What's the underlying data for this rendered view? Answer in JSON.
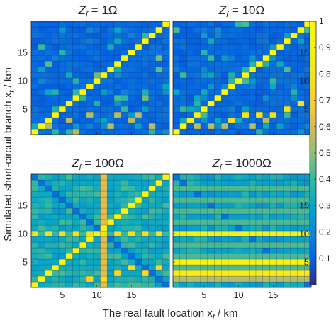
{
  "chart_data": {
    "type": "heatmap",
    "colormap": "parula",
    "xlabel": "The real fault location x",
    "xlabel_sub": "f",
    "xlabel_unit": " / km",
    "ylabel": "Simulated short-circuit branch x",
    "ylabel_sub": "f",
    "ylabel_unit": " / km",
    "grid_size": 20,
    "x_ticks": [
      5,
      10,
      15
    ],
    "y_ticks": [
      5,
      10,
      15
    ],
    "colorbar": {
      "range": [
        0,
        1
      ],
      "ticks": [
        0.1,
        0.2,
        0.3,
        0.4,
        0.5,
        0.6,
        0.7,
        0.8,
        0.9,
        1
      ]
    },
    "panels": [
      {
        "title_prefix": "Z",
        "title_sub": "f",
        "title_value": " = 1Ω",
        "background": 0.12,
        "diagonal": 0.97,
        "features": [
          {
            "kind": "noise",
            "amp": 0.35,
            "seed": 11,
            "density": 0.18
          },
          {
            "kind": "cells",
            "value": 0.55,
            "points": [
              [
                6,
                3
              ],
              [
                9,
                4
              ],
              [
                13,
                4
              ],
              [
                16,
                4
              ],
              [
                3,
                2
              ],
              [
                12,
                2
              ],
              [
                7,
                1
              ],
              [
                15,
                3
              ],
              [
                18,
                2
              ]
            ]
          }
        ]
      },
      {
        "title_prefix": "Z",
        "title_sub": "f",
        "title_value": " = 10Ω",
        "background": 0.12,
        "diagonal": 0.97,
        "features": [
          {
            "kind": "noise",
            "amp": 0.3,
            "seed": 23,
            "density": 0.16
          },
          {
            "kind": "cells",
            "value": 0.8,
            "points": [
              [
                11,
                4
              ],
              [
                13,
                4
              ],
              [
                15,
                4
              ],
              [
                17,
                5
              ],
              [
                19,
                6
              ],
              [
                9,
                3
              ]
            ]
          },
          {
            "kind": "cells",
            "value": 0.55,
            "points": [
              [
                4,
                2
              ],
              [
                6,
                2
              ],
              [
                8,
                2
              ],
              [
                12,
                2
              ],
              [
                14,
                3
              ]
            ]
          }
        ]
      },
      {
        "title_prefix": "Z",
        "title_sub": "f",
        "title_value": " = 100Ω",
        "background": 0.3,
        "diagonal": 0.95,
        "features": [
          {
            "kind": "noise",
            "amp": 0.12,
            "seed": 37,
            "density": 0.5
          },
          {
            "kind": "antidiagonal",
            "value": 0.14
          },
          {
            "kind": "row",
            "index": 10,
            "value": 0.78,
            "alt": 0.4
          },
          {
            "kind": "column",
            "index": 11,
            "value": 0.62
          },
          {
            "kind": "cells",
            "value": 0.75,
            "points": [
              [
                13,
                3
              ],
              [
                15,
                4
              ],
              [
                17,
                3
              ],
              [
                19,
                4
              ],
              [
                9,
                2
              ],
              [
                11,
                2
              ]
            ]
          }
        ]
      },
      {
        "title_prefix": "Z",
        "title_sub": "f",
        "title_value": " = 1000Ω",
        "background": 0.27,
        "diagonal": null,
        "features": [
          {
            "kind": "noise",
            "amp": 0.1,
            "seed": 41,
            "density": 0.5
          },
          {
            "kind": "antidiagonal",
            "value": 0.14
          },
          {
            "kind": "stripe_rows",
            "indices": [
              2,
              4,
              6,
              8,
              12,
              14,
              16,
              18
            ],
            "value": 0.42
          },
          {
            "kind": "row",
            "index": 10,
            "value": 0.9,
            "alt": null
          },
          {
            "kind": "row",
            "index": 5,
            "value": 0.92,
            "alt": null
          },
          {
            "kind": "row",
            "index": 3,
            "value": 0.88,
            "alt": null
          },
          {
            "kind": "row",
            "index": 2,
            "value": 0.55,
            "alt": null
          }
        ]
      }
    ]
  }
}
